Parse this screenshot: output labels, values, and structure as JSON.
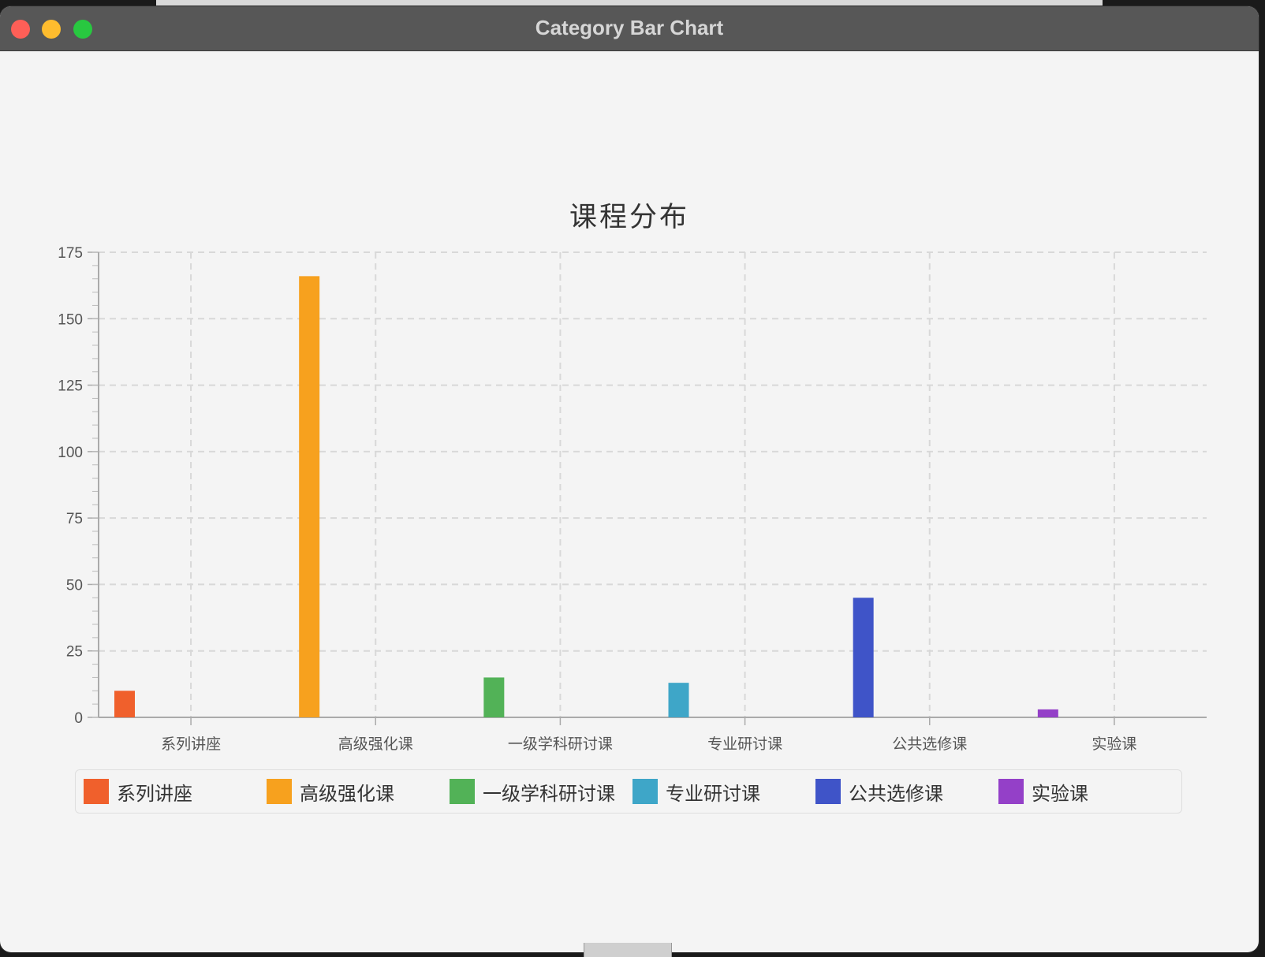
{
  "window": {
    "title": "Category Bar Chart"
  },
  "chart_data": {
    "type": "bar",
    "title": "课程分布",
    "categories": [
      "系列讲座",
      "高级强化课",
      "一级学科研讨课",
      "专业研讨课",
      "公共选修课",
      "实验课"
    ],
    "series": [
      {
        "name": "系列讲座",
        "color": "#f0602c",
        "values": [
          10,
          0,
          0,
          0,
          0,
          0
        ]
      },
      {
        "name": "高级强化课",
        "color": "#f7a11e",
        "values": [
          0,
          166,
          0,
          0,
          0,
          0
        ]
      },
      {
        "name": "一级学科研讨课",
        "color": "#52b257",
        "values": [
          0,
          0,
          15,
          0,
          0,
          0
        ]
      },
      {
        "name": "专业研讨课",
        "color": "#3ea6c8",
        "values": [
          0,
          0,
          0,
          13,
          0,
          0
        ]
      },
      {
        "name": "公共选修课",
        "color": "#3f54c8",
        "values": [
          0,
          0,
          0,
          0,
          45,
          0
        ]
      },
      {
        "name": "实验课",
        "color": "#9440c8",
        "values": [
          0,
          0,
          0,
          0,
          0,
          3
        ]
      }
    ],
    "ylim": [
      0,
      175
    ],
    "yticks": [
      0,
      25,
      50,
      75,
      100,
      125,
      150,
      175
    ],
    "xlabel": "",
    "ylabel": "",
    "grid": true,
    "legend_position": "bottom"
  }
}
